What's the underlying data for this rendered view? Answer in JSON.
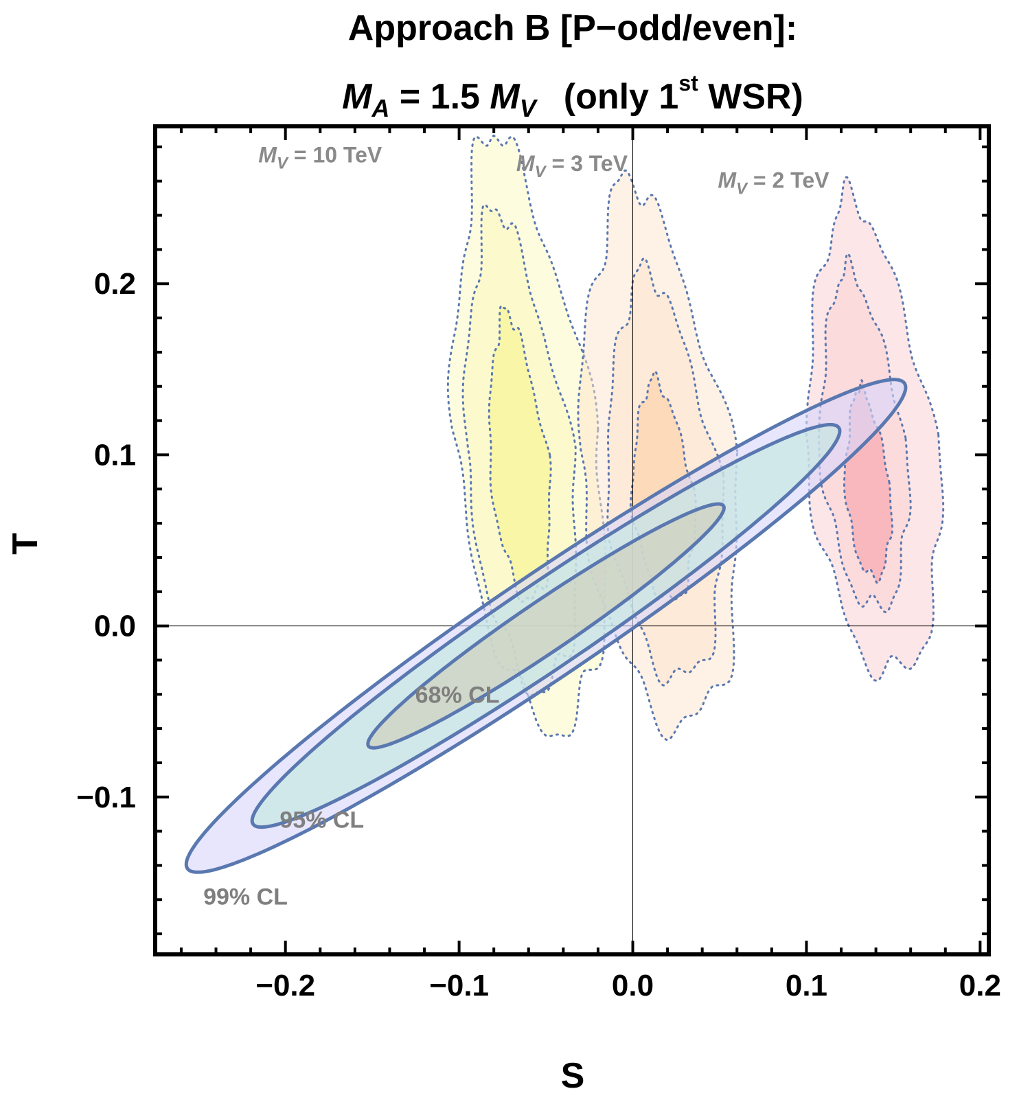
{
  "chart_data": {
    "type": "contour",
    "title": {
      "line1": "Approach B  [P−odd/even]:",
      "line2_mA": "M",
      "line2_mA_sub": "A",
      "line2_mid": " = 1.5 ",
      "line2_mV": "M",
      "line2_mV_sub": "V",
      "line2_rest_a": "(only 1",
      "line2_sup": "st",
      "line2_rest_b": " WSR)"
    },
    "xlabel": "S",
    "ylabel": "T",
    "xlim": [
      -0.275,
      0.205
    ],
    "ylim": [
      -0.192,
      0.292
    ],
    "xticks": [
      -0.2,
      -0.1,
      0.0,
      0.1,
      0.2
    ],
    "xtick_labels": [
      "−0.2",
      "−0.1",
      "0.0",
      "0.1",
      "0.2"
    ],
    "yticks": [
      -0.1,
      0.0,
      0.1,
      0.2
    ],
    "ytick_labels": [
      "−0.1",
      "0.0",
      "0.1",
      "0.2"
    ],
    "grid": false,
    "reference_lines": {
      "x": 0.0,
      "y": 0.0
    },
    "experimental_ellipses": {
      "center": [
        -0.05,
        0.0
      ],
      "angle_deg": 34.5,
      "semi_major": 0.124,
      "semi_minor": 0.0148,
      "levels": [
        {
          "label": "99% CL",
          "scale": 2.02,
          "fill": "#d8d6fb"
        },
        {
          "label": "95% CL",
          "scale": 1.65,
          "fill": "#c4e8e0"
        },
        {
          "label": "68% CL",
          "scale": 1.0,
          "fill": "#cfcfb8"
        }
      ],
      "edge_color": "#5a78b0"
    },
    "resonance_regions": [
      {
        "label_prefix": "M",
        "label_sub": "V",
        "label_value": " = 10 TeV",
        "color": "#fbf9b8",
        "inner_color": "#f6f38a",
        "levels": [
          {
            "center": [
              -0.062,
              0.115
            ],
            "ry": 0.175,
            "rx": 0.042,
            "tilt": 0.105,
            "alpha": 0.45
          },
          {
            "center": [
              -0.066,
              0.104
            ],
            "ry": 0.141,
            "rx": 0.031,
            "tilt": 0.095,
            "alpha": 0.45
          },
          {
            "center": [
              -0.066,
              0.1
            ],
            "ry": 0.085,
            "rx": 0.017,
            "tilt": 0.085,
            "alpha": 0.55
          }
        ]
      },
      {
        "label_prefix": "M",
        "label_sub": "V",
        "label_value": " = 3 TeV",
        "color": "#fde4cc",
        "inner_color": "#fbcfa6",
        "levels": [
          {
            "center": [
              0.013,
              0.102
            ],
            "ry": 0.16,
            "rx": 0.045,
            "tilt": 0.095,
            "alpha": 0.5
          },
          {
            "center": [
              0.017,
              0.089
            ],
            "ry": 0.12,
            "rx": 0.033,
            "tilt": 0.085,
            "alpha": 0.5
          },
          {
            "center": [
              0.017,
              0.08
            ],
            "ry": 0.065,
            "rx": 0.018,
            "tilt": 0.075,
            "alpha": 0.6
          }
        ]
      },
      {
        "label_prefix": "M",
        "label_sub": "V",
        "label_value": " = 2 TeV",
        "color": "#fcd1d3",
        "inner_color": "#f8a6ad",
        "levels": [
          {
            "center": [
              0.137,
              0.112
            ],
            "ry": 0.14,
            "rx": 0.038,
            "tilt": 0.09,
            "alpha": 0.55
          },
          {
            "center": [
              0.132,
              0.11
            ],
            "ry": 0.1,
            "rx": 0.025,
            "tilt": 0.085,
            "alpha": 0.55
          },
          {
            "center": [
              0.135,
              0.084
            ],
            "ry": 0.056,
            "rx": 0.013,
            "tilt": 0.075,
            "alpha": 0.65
          }
        ]
      }
    ]
  }
}
